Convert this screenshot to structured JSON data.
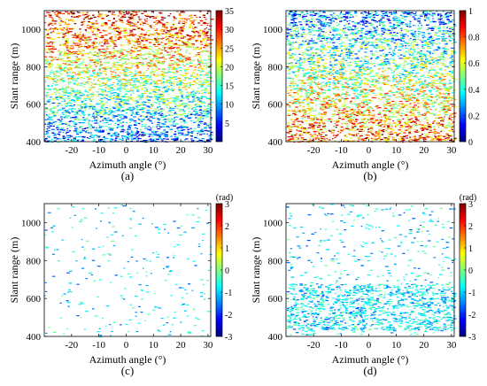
{
  "colormap": [
    "#00007f",
    "#0000ff",
    "#007fff",
    "#00ffff",
    "#7fff7f",
    "#ffff00",
    "#ff7f00",
    "#ff0000",
    "#7f0000"
  ],
  "chart_data": [
    {
      "type": "heatmap",
      "panel_label": "(a)",
      "xlabel": "Azimuth angle (°)",
      "ylabel": "Slant range (m)",
      "xlim": [
        -30,
        31
      ],
      "ylim": [
        400,
        1100
      ],
      "xticks": [
        "-20",
        "-10",
        "0",
        "10",
        "20",
        "30"
      ],
      "yticks": [
        "400",
        "600",
        "800",
        "1000"
      ],
      "colorbar": {
        "min": 0,
        "max": 35,
        "unit": "",
        "ticks": [
          "5",
          "10",
          "15",
          "20",
          "25",
          "30",
          "35"
        ]
      },
      "density": "dense"
    },
    {
      "type": "heatmap",
      "panel_label": "(b)",
      "xlabel": "Azimuth angle (°)",
      "ylabel": "Slant range (m)",
      "xlim": [
        -30,
        31
      ],
      "ylim": [
        400,
        1100
      ],
      "xticks": [
        "-20",
        "-10",
        "0",
        "10",
        "20",
        "30"
      ],
      "yticks": [
        "400",
        "600",
        "800",
        "1000"
      ],
      "colorbar": {
        "min": 0,
        "max": 1,
        "unit": "",
        "ticks": [
          "0",
          "0.2",
          "0.4",
          "0.6",
          "0.8",
          "1"
        ]
      },
      "density": "dense"
    },
    {
      "type": "heatmap",
      "panel_label": "(c)",
      "xlabel": "Azimuth angle (°)",
      "ylabel": "Slant range (m)",
      "xlim": [
        -30,
        31
      ],
      "ylim": [
        400,
        1100
      ],
      "xticks": [
        "-20",
        "-10",
        "0",
        "10",
        "20",
        "30"
      ],
      "yticks": [
        "400",
        "600",
        "800",
        "1000"
      ],
      "colorbar": {
        "min": -3,
        "max": 3,
        "unit": "(rad)",
        "ticks": [
          "-3",
          "-2",
          "-1",
          "0",
          "1",
          "2",
          "3"
        ]
      },
      "density": "sparse"
    },
    {
      "type": "heatmap",
      "panel_label": "(d)",
      "xlabel": "Azimuth angle (°)",
      "ylabel": "Slant range (m)",
      "xlim": [
        -30,
        31
      ],
      "ylim": [
        400,
        1100
      ],
      "xticks": [
        "-20",
        "-10",
        "0",
        "10",
        "20",
        "30"
      ],
      "yticks": [
        "400",
        "600",
        "800",
        "1000"
      ],
      "colorbar": {
        "min": -3,
        "max": 3,
        "unit": "(rad)",
        "ticks": [
          "-3",
          "-2",
          "-1",
          "0",
          "1",
          "2",
          "3"
        ]
      },
      "density": "medium"
    }
  ]
}
